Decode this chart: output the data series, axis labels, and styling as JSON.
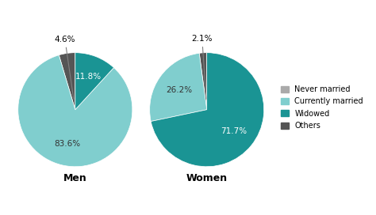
{
  "background_color": "#ffffff",
  "color_never": "#AAAAAA",
  "color_current": "#80CECE",
  "color_widowed": "#1A9494",
  "color_others": "#555555",
  "men_label": "Men",
  "women_label": "Women",
  "men_sizes": [
    83.6,
    11.8,
    4.6
  ],
  "men_colors": [
    "#80CECE",
    "#1A9494",
    "#555555"
  ],
  "women_sizes": [
    26.2,
    71.7,
    2.1
  ],
  "women_colors": [
    "#80CECE",
    "#1A9494",
    "#555555"
  ],
  "men_labels": [
    "83.6%",
    "11.8%",
    "4.6%"
  ],
  "women_labels": [
    "26.2%",
    "71.7%",
    "2.1%"
  ],
  "legend_labels": [
    "Never married",
    "Currently married",
    "Widowed",
    "Others"
  ],
  "label_fontsize": 7.5,
  "title_fontsize": 9,
  "legend_fontsize": 7
}
